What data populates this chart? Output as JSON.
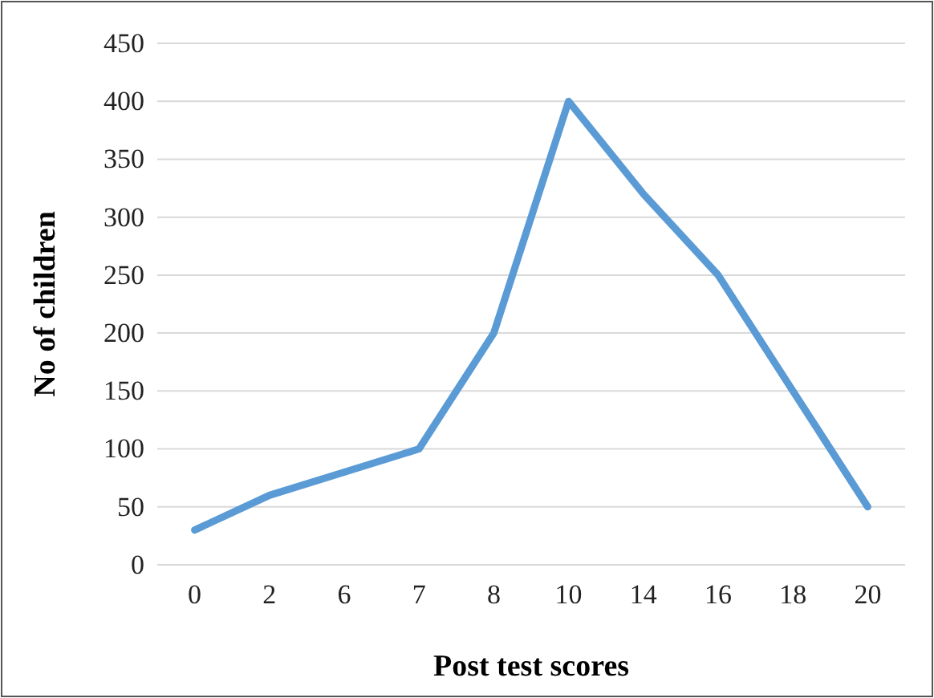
{
  "chart_data": {
    "type": "line",
    "xlabel": "Post test scores",
    "ylabel": "No of children",
    "categories": [
      "0",
      "2",
      "6",
      "7",
      "8",
      "10",
      "14",
      "16",
      "18",
      "20"
    ],
    "series": [
      {
        "color": "#5b9bd5",
        "values": [
          30,
          60,
          80,
          100,
          200,
          400,
          320,
          250,
          150,
          50
        ]
      }
    ],
    "ylim": [
      0,
      450
    ],
    "yticks": [
      0,
      50,
      100,
      150,
      200,
      250,
      300,
      350,
      400,
      450
    ],
    "grid": "y"
  }
}
